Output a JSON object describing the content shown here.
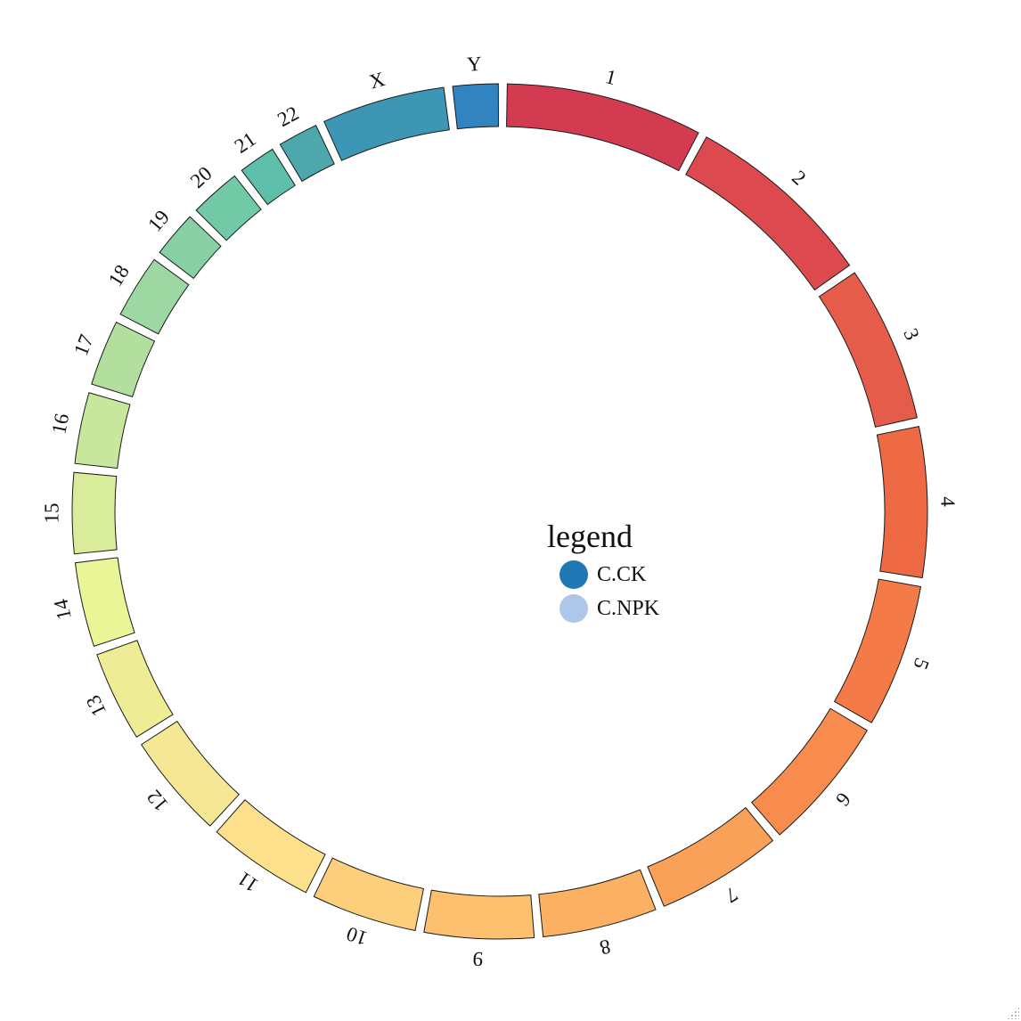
{
  "diagram": {
    "chromosomes": [
      {
        "label": "1",
        "start": 0,
        "end": 248956422,
        "color": "#d33c50"
      },
      {
        "label": "2",
        "start": 0,
        "end": 242193529,
        "color": "#dc4a4f"
      },
      {
        "label": "3",
        "start": 0,
        "end": 198295559,
        "color": "#e55c4b"
      },
      {
        "label": "4",
        "start": 0,
        "end": 190214555,
        "color": "#ee6a44"
      },
      {
        "label": "5",
        "start": 0,
        "end": 181538259,
        "color": "#f47b47"
      },
      {
        "label": "6",
        "start": 0,
        "end": 170805979,
        "color": "#f88c4f"
      },
      {
        "label": "7",
        "start": 0,
        "end": 159345973,
        "color": "#f9a158"
      },
      {
        "label": "8",
        "start": 0,
        "end": 145138636,
        "color": "#fbb062"
      },
      {
        "label": "9",
        "start": 0,
        "end": 138394717,
        "color": "#fdc06e"
      },
      {
        "label": "10",
        "start": 0,
        "end": 133797422,
        "color": "#fdcf7c"
      },
      {
        "label": "11",
        "start": 0,
        "end": 135086622,
        "color": "#fce08b"
      },
      {
        "label": "12",
        "start": 0,
        "end": 133275309,
        "color": "#f5e794"
      },
      {
        "label": "13",
        "start": 0,
        "end": 114364328,
        "color": "#eeec95"
      },
      {
        "label": "14",
        "start": 0,
        "end": 107043718,
        "color": "#e9f597"
      },
      {
        "label": "15",
        "start": 0,
        "end": 101991189,
        "color": "#d8ec9c"
      },
      {
        "label": "16",
        "start": 0,
        "end": 90338345,
        "color": "#c7e79c"
      },
      {
        "label": "17",
        "start": 0,
        "end": 83257441,
        "color": "#b2df9e"
      },
      {
        "label": "18",
        "start": 0,
        "end": 80373285,
        "color": "#9dd7a2"
      },
      {
        "label": "19",
        "start": 0,
        "end": 58617616,
        "color": "#88d0a4"
      },
      {
        "label": "20",
        "start": 0,
        "end": 64444167,
        "color": "#72c9a5"
      },
      {
        "label": "21",
        "start": 0,
        "end": 46709983,
        "color": "#5ebea9"
      },
      {
        "label": "22",
        "start": 0,
        "end": 50818468,
        "color": "#4ca8ac"
      },
      {
        "label": "X",
        "start": 0,
        "end": 156040895,
        "color": "#3d97b4"
      },
      {
        "label": "Y",
        "start": 0,
        "end": 57227415,
        "color": "#3184c0"
      }
    ]
  },
  "legend": {
    "title": "legend",
    "items": [
      {
        "label": "C.CK",
        "color": "#1f77b4"
      },
      {
        "label": "C.NPK",
        "color": "#aec7e8"
      }
    ]
  }
}
